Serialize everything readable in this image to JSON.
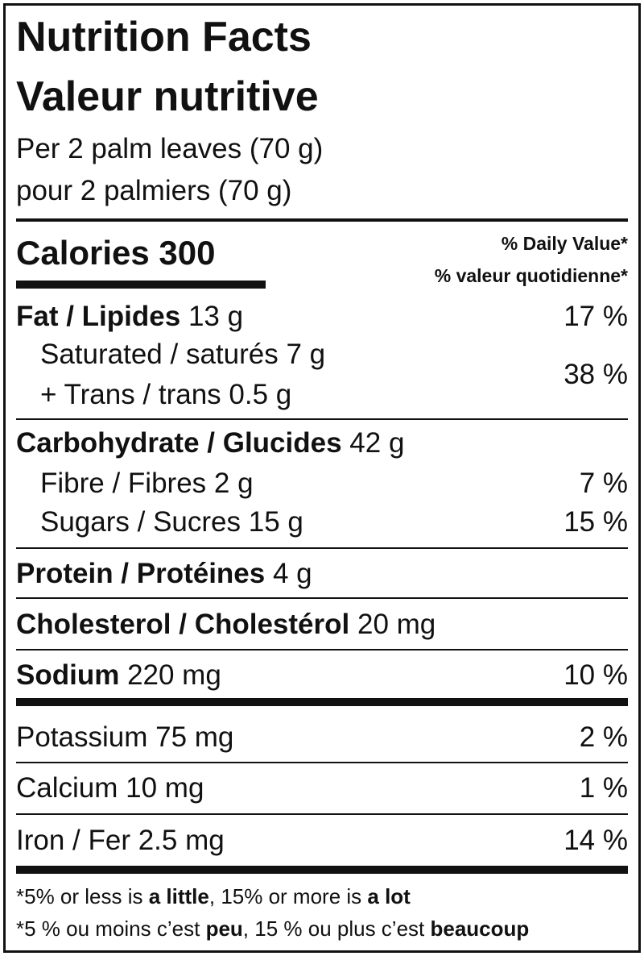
{
  "title": {
    "en": "Nutrition Facts",
    "fr": "Valeur nutritive"
  },
  "serving": {
    "en": "Per 2 palm leaves (70 g)",
    "fr": "pour 2 palmiers (70 g)"
  },
  "calories": {
    "label": "Calories",
    "value": "300"
  },
  "daily_value_header": {
    "en": "% Daily Value*",
    "fr": "% valeur quotidienne*"
  },
  "nutrients": [
    {
      "name": "Fat / Lipides",
      "amount": "13 g",
      "dv": "17 %"
    },
    {
      "lines": [
        "Saturated / saturés 7 g",
        "+ Trans / trans 0.5 g"
      ],
      "dv": "38 %"
    },
    {
      "name": "Carbohydrate / Glucides",
      "amount": "42 g"
    },
    {
      "name": "Fibre / Fibres 2 g",
      "dv": "7 %"
    },
    {
      "name": "Sugars / Sucres 15 g",
      "dv": "15 %"
    },
    {
      "name": "Protein / Protéines",
      "amount": "4 g"
    },
    {
      "name": "Cholesterol / Cholestérol",
      "amount": "20 mg"
    },
    {
      "name": "Sodium",
      "amount": "220 mg",
      "dv": "10 %"
    },
    {
      "name": "Potassium 75 mg",
      "dv": "2 %"
    },
    {
      "name": "Calcium 10 mg",
      "dv": "1 %"
    },
    {
      "name": "Iron / Fer 2.5 mg",
      "dv": "14 %"
    }
  ],
  "footnote": {
    "en": [
      "*5% or less is ",
      "a little",
      ", 15% or more is ",
      "a lot"
    ],
    "fr": [
      "*5 % ou moins c’est ",
      "peu",
      ", 15 % ou plus c’est ",
      "beaucoup"
    ]
  }
}
